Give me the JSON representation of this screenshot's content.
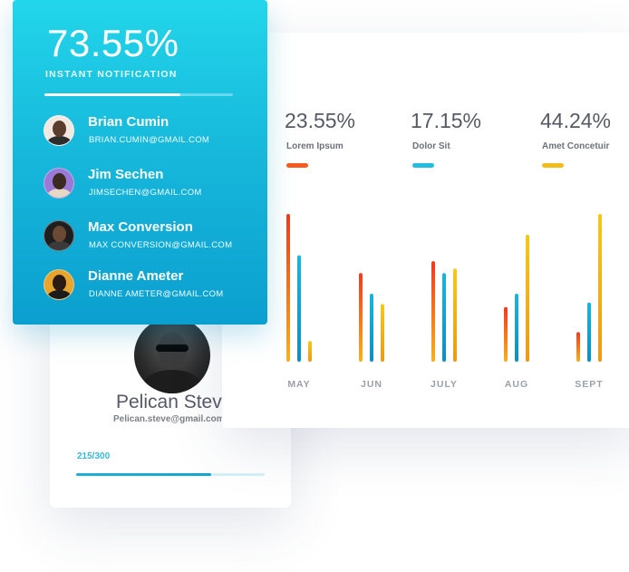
{
  "notification": {
    "value": "73.55%",
    "label": "INSTANT NOTIFICATION",
    "progress_fraction": 0.72,
    "users": [
      {
        "name": "Brian Cumin",
        "email": "BRIAN.CUMIN@GMAIL.COM",
        "avatar_bg": "#f3e9e2",
        "head": "#5b3d2e",
        "body": "#2d2d2d"
      },
      {
        "name": "Jim Sechen",
        "email": "JIMSECHEN@GMAIL.COM",
        "avatar_bg": "#9b79d6",
        "head": "#3b2a22",
        "body": "#e7d7c5"
      },
      {
        "name": "Max Conversion",
        "email": "MAX CONVERSION@GMAIL.COM",
        "avatar_bg": "#1e1e1e",
        "head": "#6a4a35",
        "body": "#3a3a3a"
      },
      {
        "name": "Dianne Ameter",
        "email": "DIANNE AMETER@GMAIL.COM",
        "avatar_bg": "#e7a52d",
        "head": "#2a1b14",
        "body": "#1b1b1b"
      }
    ]
  },
  "profile": {
    "name": "Pelican Steve",
    "email": "Pelican.steve@gmail.com",
    "progress_text": "215/300",
    "progress_current": 215,
    "progress_total": 300
  },
  "stats": [
    {
      "value": "23.55%",
      "label": "Lorem Ipsum",
      "color": "#f55a1e"
    },
    {
      "value": "17.15%",
      "label": "Dolor Sit",
      "color": "#22bde0"
    },
    {
      "value": "44.24%",
      "label": "Amet Concetuir",
      "color": "#f2bd1c"
    }
  ],
  "chart_data": {
    "type": "bar",
    "categories": [
      "MAY",
      "JUN",
      "JULY",
      "AUG",
      "SEPT"
    ],
    "series": [
      {
        "name": "Lorem Ipsum",
        "values": [
          100,
          60,
          68,
          37,
          20
        ]
      },
      {
        "name": "Dolor Sit",
        "values": [
          72,
          46,
          60,
          46,
          40
        ]
      },
      {
        "name": "Amet Concetuir",
        "values": [
          14,
          39,
          63,
          86,
          100
        ]
      }
    ],
    "ylim": [
      0,
      100
    ],
    "title": "",
    "xlabel": "",
    "ylabel": "",
    "colors": {
      "s0_top": "#f03a1e",
      "s0_bottom": "#f7b21c",
      "s1_top": "#19b6dc",
      "s1_bottom": "#0e8fbf",
      "s2_top": "#f4c81a",
      "s2_bottom": "#ec9a15"
    }
  },
  "colors": {
    "accent": "#1cc4e4",
    "progress": "#14a6cf"
  }
}
